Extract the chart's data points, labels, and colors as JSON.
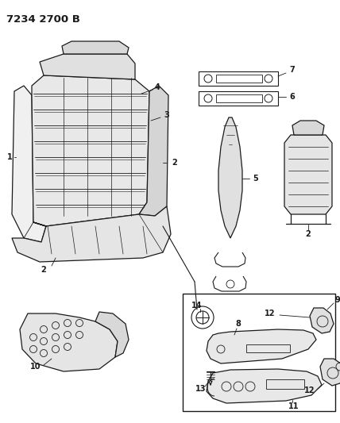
{
  "title": "7234 2700 B",
  "bg_color": "#ffffff",
  "line_color": "#1a1a1a",
  "fig_width": 4.28,
  "fig_height": 5.33,
  "dpi": 100
}
